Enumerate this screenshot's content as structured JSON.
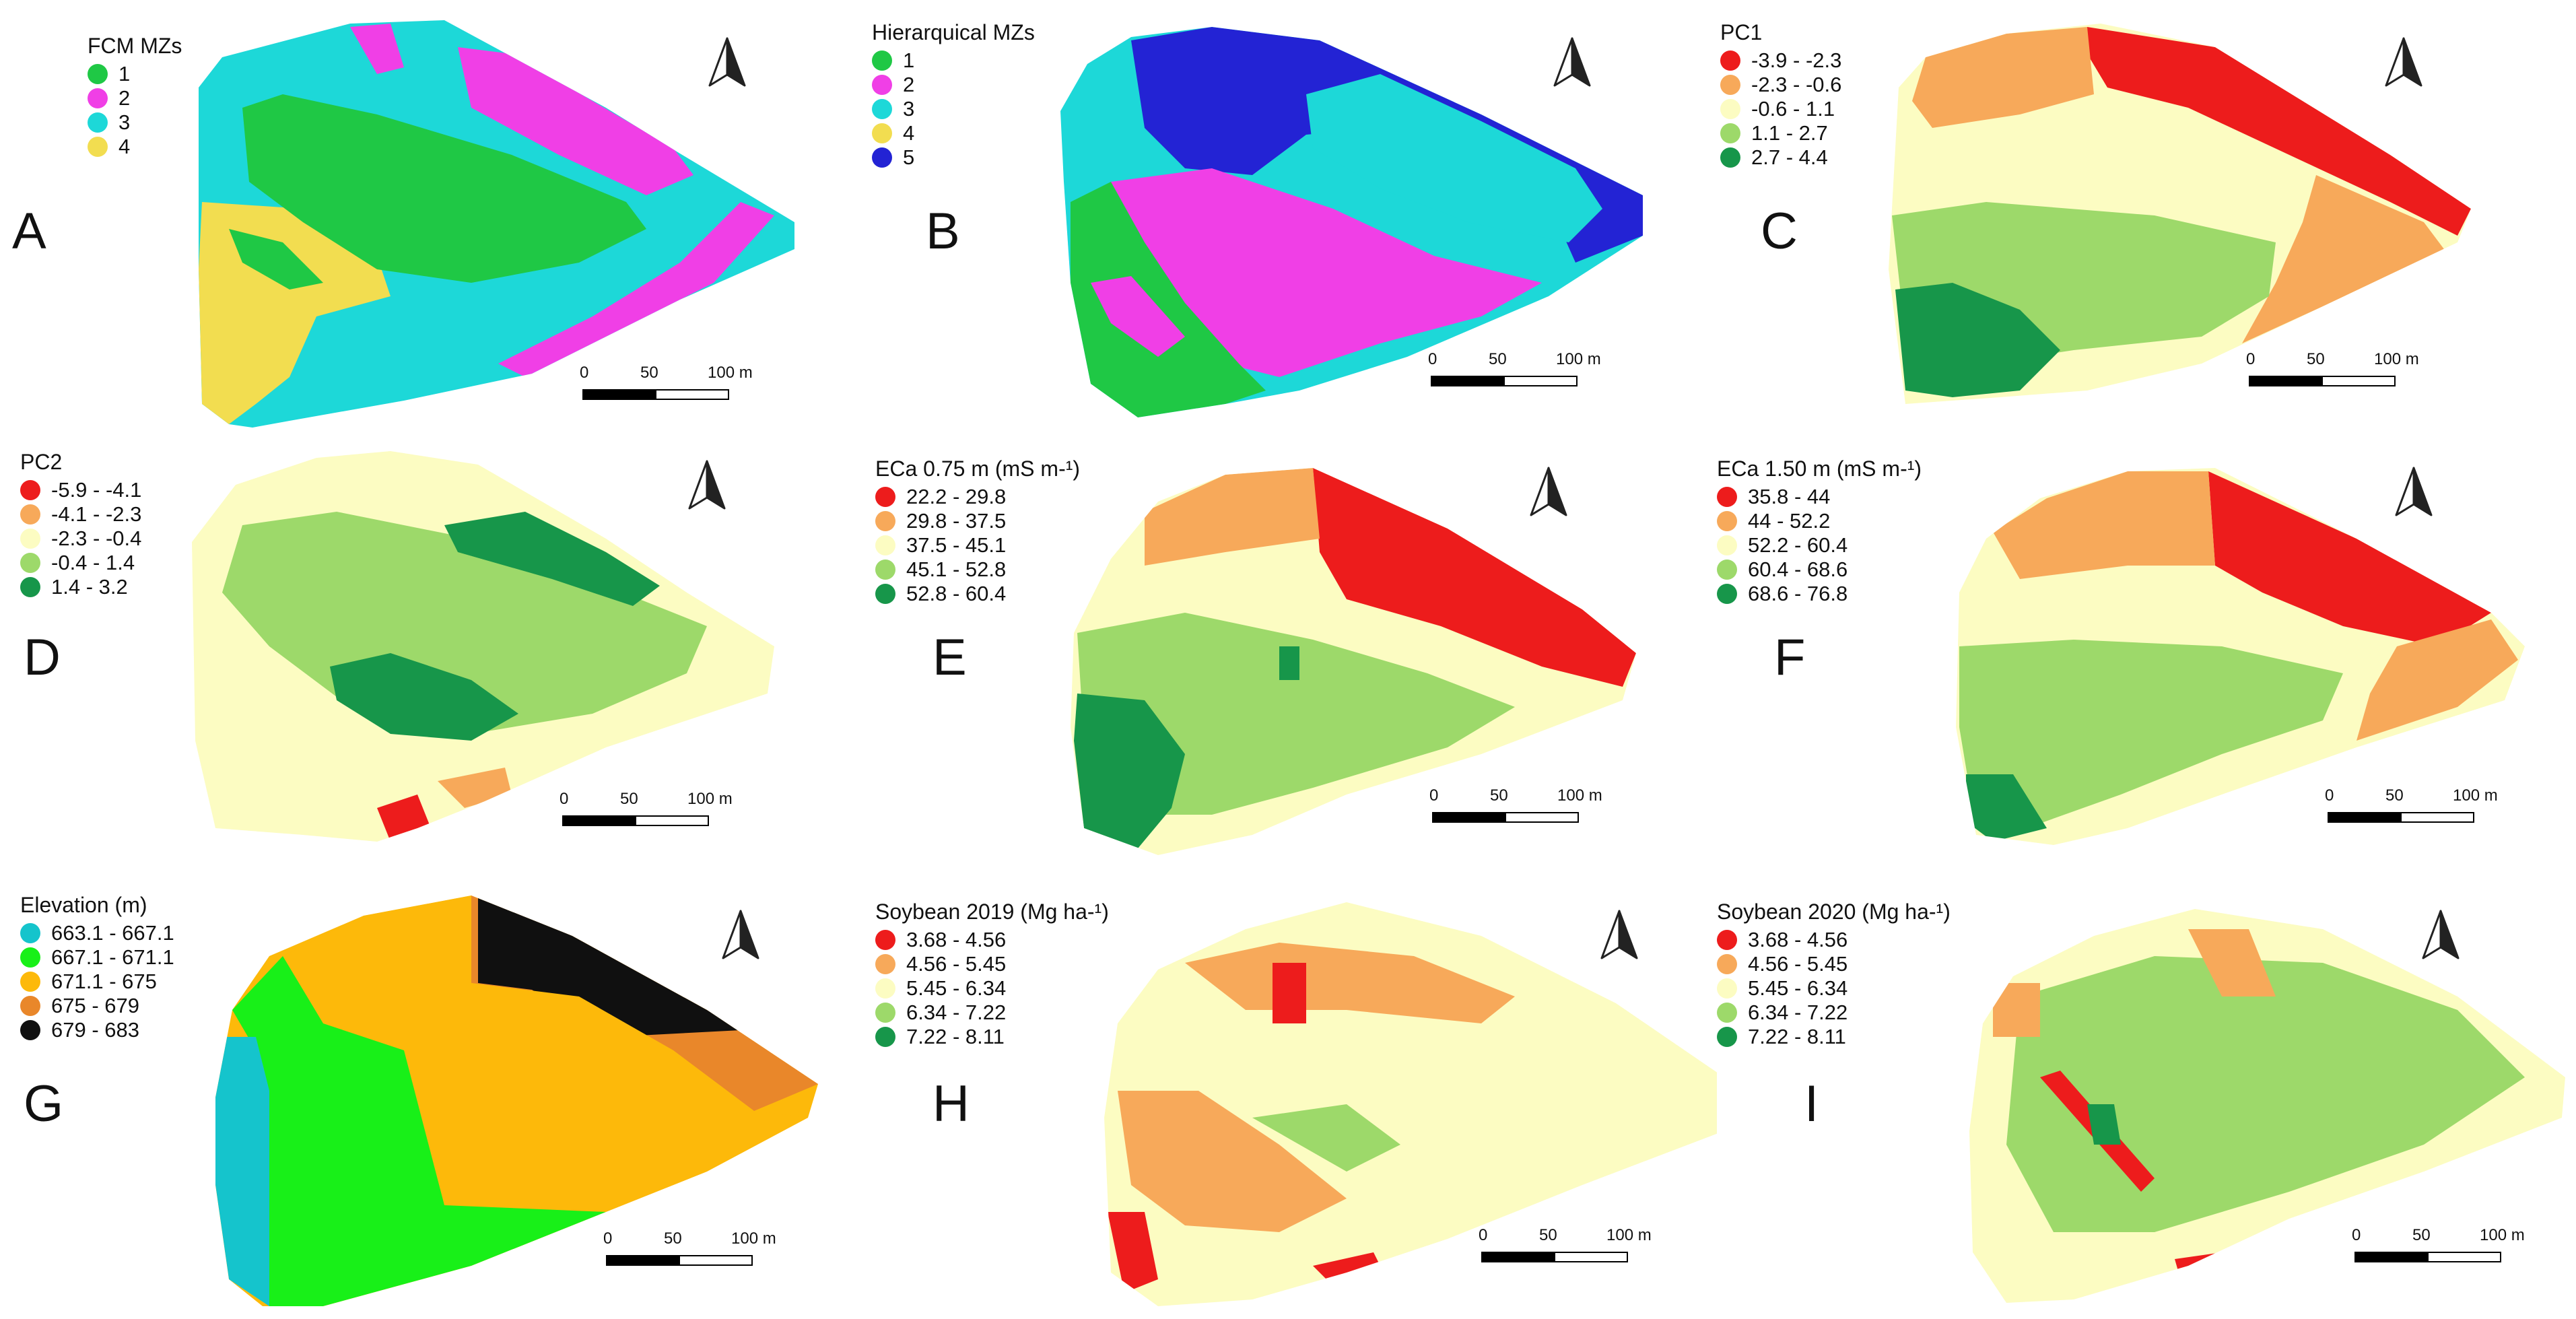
{
  "figure": {
    "panels": [
      {
        "id": "A",
        "letter": "A",
        "legend_title": "FCM MZs",
        "classes": [
          {
            "label": "1",
            "color": "#1fc845"
          },
          {
            "label": "2",
            "color": "#f03fe6"
          },
          {
            "label": "3",
            "color": "#1dd8d8"
          },
          {
            "label": "4",
            "color": "#f2dd50"
          }
        ]
      },
      {
        "id": "B",
        "letter": "B",
        "legend_title": "Hierarquical MZs",
        "classes": [
          {
            "label": "1",
            "color": "#1fc845"
          },
          {
            "label": "2",
            "color": "#f03fe6"
          },
          {
            "label": "3",
            "color": "#1dd8d8"
          },
          {
            "label": "4",
            "color": "#f2dd50"
          },
          {
            "label": "5",
            "color": "#2323d4"
          }
        ]
      },
      {
        "id": "C",
        "letter": "C",
        "legend_title": "PC1",
        "classes": [
          {
            "label": "-3.9 - -2.3",
            "color": "#ed1c1c"
          },
          {
            "label": "-2.3 - -0.6",
            "color": "#f7a95a"
          },
          {
            "label": "-0.6 - 1.1",
            "color": "#fcfcc2"
          },
          {
            "label": "1.1 - 2.7",
            "color": "#9dd96a"
          },
          {
            "label": "2.7 - 4.4",
            "color": "#17964a"
          }
        ]
      },
      {
        "id": "D",
        "letter": "D",
        "legend_title": "PC2",
        "classes": [
          {
            "label": "-5.9 - -4.1",
            "color": "#ed1c1c"
          },
          {
            "label": "-4.1 - -2.3",
            "color": "#f7a95a"
          },
          {
            "label": "-2.3 - -0.4",
            "color": "#fcfcc2"
          },
          {
            "label": "-0.4 - 1.4",
            "color": "#9dd96a"
          },
          {
            "label": "1.4 - 3.2",
            "color": "#17964a"
          }
        ]
      },
      {
        "id": "E",
        "letter": "E",
        "legend_title": "ECa 0.75 m (mS m-¹)",
        "classes": [
          {
            "label": "22.2 - 29.8",
            "color": "#ed1c1c"
          },
          {
            "label": "29.8 - 37.5",
            "color": "#f7a95a"
          },
          {
            "label": "37.5 - 45.1",
            "color": "#fcfcc2"
          },
          {
            "label": "45.1 - 52.8",
            "color": "#9dd96a"
          },
          {
            "label": "52.8 - 60.4",
            "color": "#17964a"
          }
        ]
      },
      {
        "id": "F",
        "letter": "F",
        "legend_title": "ECa 1.50 m (mS m-¹)",
        "classes": [
          {
            "label": "35.8 - 44",
            "color": "#ed1c1c"
          },
          {
            "label": "44 - 52.2",
            "color": "#f7a95a"
          },
          {
            "label": "52.2 - 60.4",
            "color": "#fcfcc2"
          },
          {
            "label": "60.4 - 68.6",
            "color": "#9dd96a"
          },
          {
            "label": "68.6 - 76.8",
            "color": "#17964a"
          }
        ]
      },
      {
        "id": "G",
        "letter": "G",
        "legend_title": "Elevation (m)",
        "classes": [
          {
            "label": "663.1 - 667.1",
            "color": "#15c4cc"
          },
          {
            "label": "667.1 - 671.1",
            "color": "#18f018"
          },
          {
            "label": "671.1 - 675",
            "color": "#fdb90a"
          },
          {
            "label": "675 - 679",
            "color": "#e9872a"
          },
          {
            "label": "679 - 683",
            "color": "#101010"
          }
        ]
      },
      {
        "id": "H",
        "letter": "H",
        "legend_title": "Soybean 2019 (Mg ha-¹)",
        "classes": [
          {
            "label": "3.68 - 4.56",
            "color": "#ed1c1c"
          },
          {
            "label": "4.56 - 5.45",
            "color": "#f7a95a"
          },
          {
            "label": "5.45 - 6.34",
            "color": "#fcfcc2"
          },
          {
            "label": "6.34 - 7.22",
            "color": "#9dd96a"
          },
          {
            "label": "7.22 - 8.11",
            "color": "#17964a"
          }
        ]
      },
      {
        "id": "I",
        "letter": "I",
        "legend_title": "Soybean 2020 (Mg ha-¹)",
        "classes": [
          {
            "label": "3.68 - 4.56",
            "color": "#ed1c1c"
          },
          {
            "label": "4.56 - 5.45",
            "color": "#f7a95a"
          },
          {
            "label": "5.45 - 6.34",
            "color": "#fcfcc2"
          },
          {
            "label": "6.34 - 7.22",
            "color": "#9dd96a"
          },
          {
            "label": "7.22 - 8.11",
            "color": "#17964a"
          }
        ]
      }
    ],
    "scalebar": {
      "ticks": [
        "0",
        "50",
        "100 m"
      ]
    },
    "north_arrow_icon": "north-arrow-icon"
  }
}
